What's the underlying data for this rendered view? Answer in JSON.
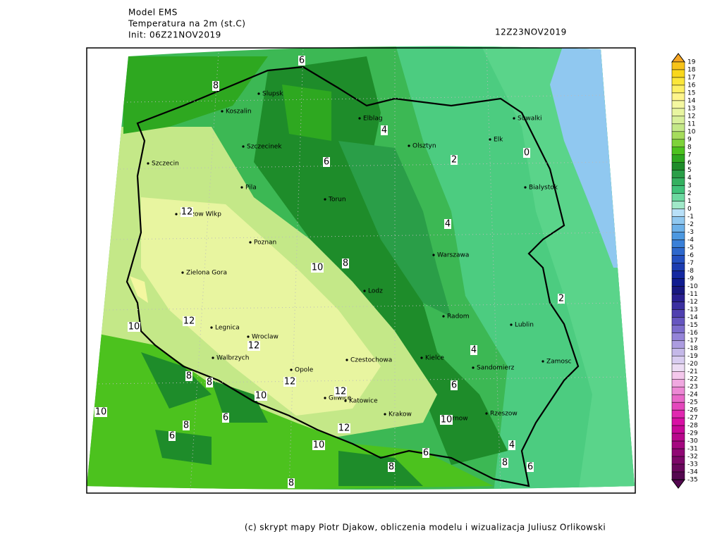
{
  "header": {
    "model": "Model EMS",
    "variable": "Temperatura na 2m (st.C)",
    "init": "Init: 06Z21NOV2019",
    "valid": "12Z23NOV2019"
  },
  "map": {
    "cities": [
      "Slupsk",
      "Koszalin",
      "Szczecinek",
      "Szczecin",
      "Pila",
      "Gorzow Wlkp",
      "Poznan",
      "Zielona Gora",
      "Legnica",
      "Wroclaw",
      "Walbrzych",
      "Opole",
      "Czestochowa",
      "Gliwice",
      "Katowice",
      "Krakow",
      "Tarnow",
      "Rzeszow",
      "Kielce",
      "Radom",
      "Lodz",
      "Torun",
      "Warszawa",
      "Olsztyn",
      "Elblag",
      "Suwalki",
      "Elk",
      "Bialystok",
      "Lublin",
      "Zamosc",
      "Sandomierz"
    ],
    "contour_labels": [
      6,
      8,
      4,
      6,
      2,
      0,
      12,
      4,
      10,
      8,
      2,
      10,
      12,
      12,
      4,
      8,
      8,
      12,
      12,
      10,
      6,
      6,
      10,
      8,
      12,
      10,
      6,
      10,
      4,
      6,
      8,
      8,
      6,
      8
    ]
  },
  "legend": {
    "values": [
      19,
      18,
      17,
      16,
      15,
      14,
      13,
      12,
      11,
      10,
      9,
      8,
      7,
      6,
      5,
      4,
      3,
      2,
      1,
      0,
      -1,
      -2,
      -3,
      -4,
      -5,
      -6,
      -7,
      -8,
      -9,
      -10,
      -11,
      -12,
      -13,
      -14,
      -15,
      -16,
      -17,
      -18,
      -19,
      -20,
      -21,
      -22,
      -23,
      -24,
      -25,
      -26,
      -27,
      -28,
      -29,
      -30,
      -31,
      -32,
      -33,
      -34,
      -35
    ],
    "colors": [
      "#f5a623",
      "#f7c31a",
      "#f9d71c",
      "#fbe63a",
      "#fdf064",
      "#fef58c",
      "#f4f7a0",
      "#e8f5a0",
      "#d8f09a",
      "#c4e888",
      "#a6dc5c",
      "#7ed23a",
      "#4cc21e",
      "#2ea820",
      "#1e8c2a",
      "#2a9e48",
      "#34b060",
      "#40c27a",
      "#6cd8a0",
      "#a0e8c8",
      "#b8e0f8",
      "#90c8f0",
      "#6cb0e8",
      "#4c98e0",
      "#3a80d8",
      "#2e68cc",
      "#2450c0",
      "#1c3cb0",
      "#1428a0",
      "#101c90",
      "#181880",
      "#2a2090",
      "#3c30a0",
      "#5040b0",
      "#6656c0",
      "#7c6ccc",
      "#9484d8",
      "#ac9ce0",
      "#c4b8e8",
      "#d8ccf0",
      "#ecdcf4",
      "#f4c8ec",
      "#f0a8e0",
      "#ec88d4",
      "#e868c8",
      "#e448bc",
      "#e028b0",
      "#d810a4",
      "#c80898",
      "#b8088c",
      "#a40880",
      "#900874",
      "#7c0868",
      "#68085c",
      "#540850"
    ]
  },
  "footer": "(c) skrypt mapy Piotr Djakow, obliczenia modelu i wizualizacja Juliusz Orlikowski"
}
